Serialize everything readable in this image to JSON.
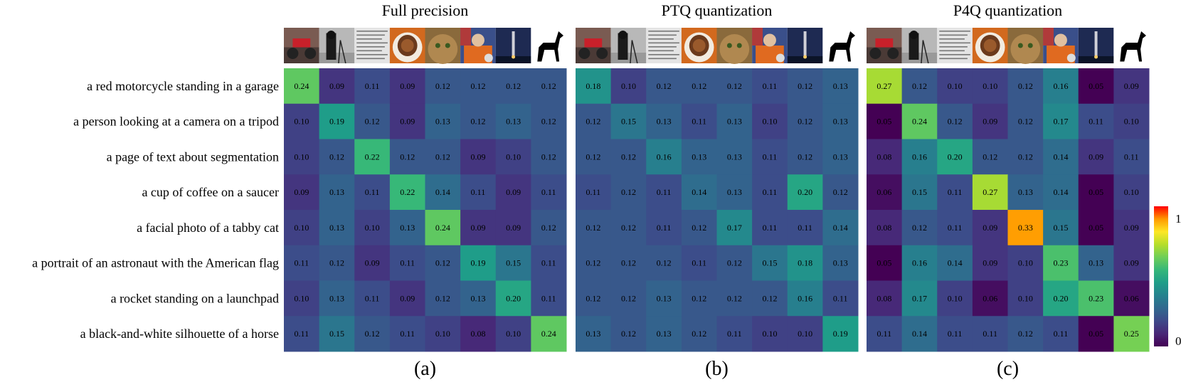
{
  "chart_data": [
    {
      "type": "heatmap",
      "title": "Full precision",
      "caption": "(a)",
      "row_labels": [
        "a red motorcycle standing in a garage",
        "a person looking at a camera on a tripod",
        "a page of text about segmentation",
        "a cup of coffee on a saucer",
        "a facial photo of a tabby cat",
        "a portrait of an astronaut with the American flag",
        "a rocket standing on a launchpad",
        "a black-and-white silhouette of a horse"
      ],
      "column_images": [
        "motorcycle",
        "camera",
        "text-page",
        "coffee",
        "cat",
        "astronaut",
        "rocket",
        "horse-silhouette"
      ],
      "values": [
        [
          0.24,
          0.09,
          0.11,
          0.09,
          0.12,
          0.12,
          0.12,
          0.12
        ],
        [
          0.1,
          0.19,
          0.12,
          0.09,
          0.13,
          0.12,
          0.13,
          0.12
        ],
        [
          0.1,
          0.12,
          0.22,
          0.12,
          0.12,
          0.09,
          0.1,
          0.12
        ],
        [
          0.09,
          0.13,
          0.11,
          0.22,
          0.14,
          0.11,
          0.09,
          0.11
        ],
        [
          0.1,
          0.13,
          0.1,
          0.13,
          0.24,
          0.09,
          0.09,
          0.12
        ],
        [
          0.11,
          0.12,
          0.09,
          0.11,
          0.12,
          0.19,
          0.15,
          0.11
        ],
        [
          0.1,
          0.13,
          0.11,
          0.09,
          0.12,
          0.13,
          0.2,
          0.11
        ],
        [
          0.11,
          0.15,
          0.12,
          0.11,
          0.1,
          0.08,
          0.1,
          0.24
        ]
      ]
    },
    {
      "type": "heatmap",
      "title": "PTQ quantization",
      "caption": "(b)",
      "column_images": [
        "motorcycle",
        "camera",
        "text-page",
        "coffee",
        "cat",
        "astronaut",
        "rocket",
        "horse-silhouette"
      ],
      "values": [
        [
          0.18,
          0.1,
          0.12,
          0.12,
          0.12,
          0.11,
          0.12,
          0.13
        ],
        [
          0.12,
          0.15,
          0.13,
          0.11,
          0.13,
          0.1,
          0.12,
          0.13
        ],
        [
          0.12,
          0.12,
          0.16,
          0.13,
          0.13,
          0.11,
          0.12,
          0.13
        ],
        [
          0.11,
          0.12,
          0.11,
          0.14,
          0.13,
          0.11,
          0.2,
          0.12
        ],
        [
          0.12,
          0.12,
          0.11,
          0.12,
          0.17,
          0.11,
          0.11,
          0.14
        ],
        [
          0.12,
          0.12,
          0.12,
          0.11,
          0.12,
          0.15,
          0.18,
          0.13
        ],
        [
          0.12,
          0.12,
          0.13,
          0.12,
          0.12,
          0.12,
          0.16,
          0.11
        ],
        [
          0.13,
          0.12,
          0.13,
          0.12,
          0.11,
          0.1,
          0.1,
          0.19
        ]
      ]
    },
    {
      "type": "heatmap",
      "title": "P4Q quantization",
      "caption": "(c)",
      "column_images": [
        "motorcycle",
        "camera",
        "text-page",
        "coffee",
        "cat",
        "astronaut",
        "rocket",
        "horse-silhouette"
      ],
      "values": [
        [
          0.27,
          0.12,
          0.1,
          0.1,
          0.12,
          0.16,
          0.05,
          0.09
        ],
        [
          0.05,
          0.24,
          0.12,
          0.09,
          0.12,
          0.17,
          0.11,
          0.1
        ],
        [
          0.08,
          0.16,
          0.2,
          0.12,
          0.12,
          0.14,
          0.09,
          0.11
        ],
        [
          0.06,
          0.15,
          0.11,
          0.27,
          0.13,
          0.14,
          0.05,
          0.1
        ],
        [
          0.08,
          0.12,
          0.11,
          0.09,
          0.33,
          0.15,
          0.05,
          0.09
        ],
        [
          0.05,
          0.16,
          0.14,
          0.09,
          0.1,
          0.23,
          0.13,
          0.09
        ],
        [
          0.08,
          0.17,
          0.1,
          0.06,
          0.1,
          0.2,
          0.23,
          0.06
        ],
        [
          0.11,
          0.14,
          0.11,
          0.11,
          0.12,
          0.11,
          0.05,
          0.25
        ]
      ]
    }
  ],
  "colorbar": {
    "min_label": "0",
    "max_label": "1",
    "vmin": 0.05,
    "vmax": 0.36,
    "colormap": "viridis-like with red top",
    "stops": [
      "#440154",
      "#482777",
      "#3e4989",
      "#31688e",
      "#26828e",
      "#1f9e89",
      "#35b779",
      "#6ece58",
      "#b5de2b",
      "#fde725",
      "#ff9900",
      "#ff0000"
    ]
  }
}
